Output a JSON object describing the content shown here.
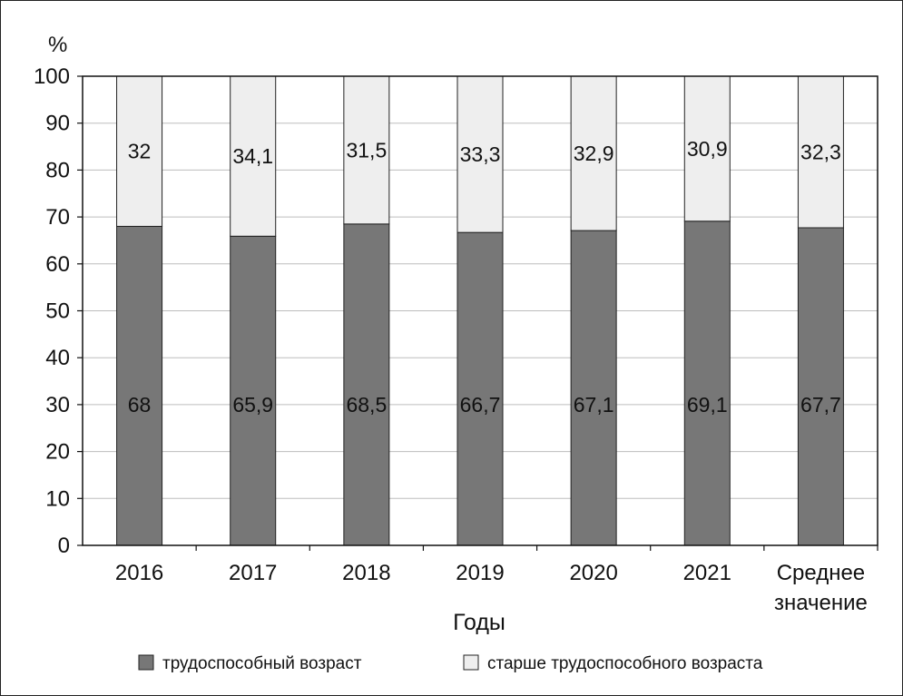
{
  "chart_data": {
    "type": "bar",
    "stacked": true,
    "unit_label": "%",
    "xlabel": "Годы",
    "ylabel": "",
    "ylim": [
      0,
      100
    ],
    "yticks": [
      0,
      10,
      20,
      30,
      40,
      50,
      60,
      70,
      80,
      90,
      100
    ],
    "grid": true,
    "legend_position": "bottom",
    "categories": [
      [
        "2016"
      ],
      [
        "2017"
      ],
      [
        "2018"
      ],
      [
        "2019"
      ],
      [
        "2020"
      ],
      [
        "2021"
      ],
      [
        "Среднее",
        "значение"
      ]
    ],
    "series": [
      {
        "name": "трудоспособный возраст",
        "color": "#777777",
        "values": [
          68,
          65.9,
          68.5,
          66.7,
          67.1,
          69.1,
          67.7
        ],
        "labels": [
          "68",
          "65,9",
          "68,5",
          "66,7",
          "67,1",
          "69,1",
          "67,7"
        ]
      },
      {
        "name": "старше трудоспособного возраста",
        "color": "#eeeeee",
        "values": [
          32,
          34.1,
          31.5,
          33.3,
          32.9,
          30.9,
          32.3
        ],
        "labels": [
          "32",
          "34,1",
          "31,5",
          "33,3",
          "32,9",
          "30,9",
          "32,3"
        ]
      }
    ]
  }
}
